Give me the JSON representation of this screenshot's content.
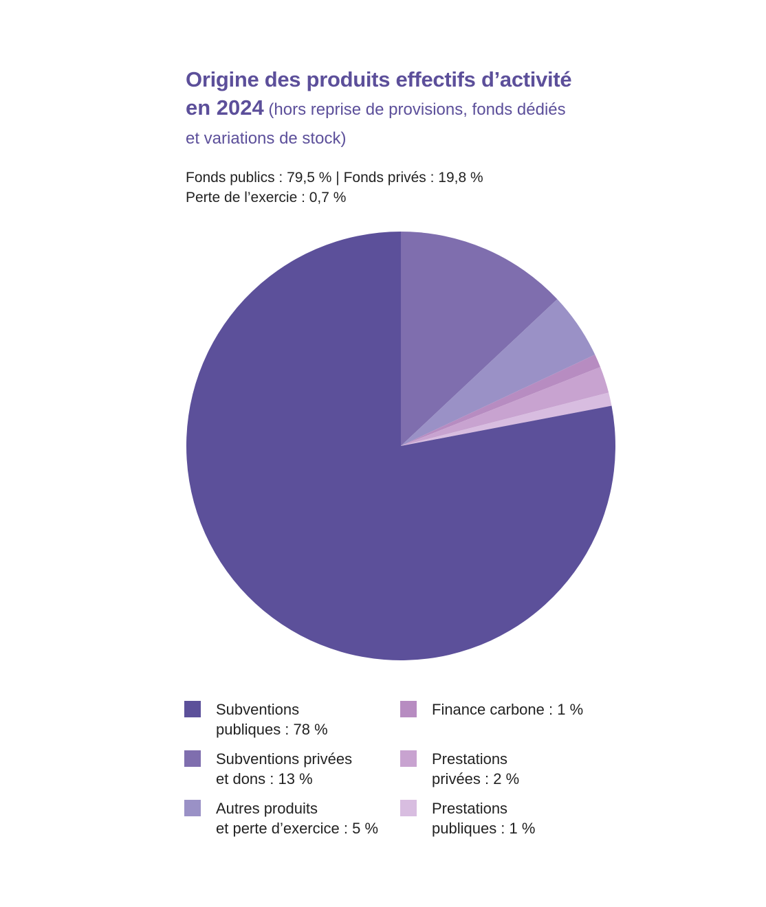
{
  "title": {
    "line1": "Origine des produits effectifs d’activité",
    "line2_bold": "en 2024",
    "line2_rest": " (hors reprise de provisions, fonds dédiés",
    "line3": "et variations de stock)"
  },
  "summary": {
    "line1": "Fonds publics : 79,5 % | Fonds privés : 19,8 %",
    "line2": "Perte de l’exercie : 0,7 %"
  },
  "chart_data": {
    "type": "pie",
    "slices": [
      {
        "label": "Subventions\npubliques : 78 %",
        "value": 78,
        "color": "#5c509a"
      },
      {
        "label": "Subventions privées\net dons : 13 %",
        "value": 13,
        "color": "#7f6eae"
      },
      {
        "label": "Autres produits\net perte d’exercice : 5 %",
        "value": 5,
        "color": "#9a91c6"
      },
      {
        "label": "Finance carbone : 1 %",
        "value": 1,
        "color": "#b78cc1"
      },
      {
        "label": "Prestations\nprivées : 2 %",
        "value": 2,
        "color": "#c8a3d0"
      },
      {
        "label": "Prestations\npubliques : 1 %",
        "value": 1,
        "color": "#d8bde0"
      }
    ],
    "legend": "bottom"
  }
}
